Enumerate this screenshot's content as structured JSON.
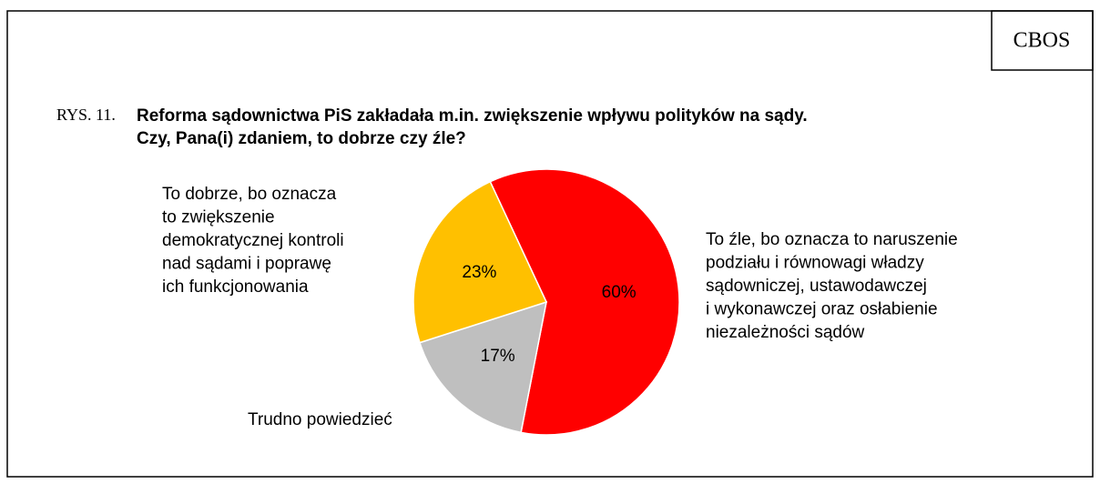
{
  "chart_data": {
    "type": "pie",
    "source": "CBOS",
    "figure_label": "RYS. 11.",
    "title": [
      "Reforma sądownictwa PiS zakładała m.in. zwiększenie wpływu polityków na sądy.",
      "Czy, Pana(i) zdaniem, to dobrze czy źle?"
    ],
    "categories": [
      [
        "To źle, bo oznacza to naruszenie",
        "podziału i równowagi władzy",
        "sądowniczej, ustawodawczej",
        "i wykonawczej oraz osłabienie",
        "niezależności sądów"
      ],
      [
        "Trudno powiedzieć"
      ],
      [
        "To dobrze, bo oznacza",
        "to zwiększenie",
        "demokratycznej kontroli",
        "nad sądami i poprawę",
        "ich funkcjonowania"
      ]
    ],
    "values": [
      60,
      17,
      23
    ],
    "value_labels": [
      "60%",
      "17%",
      "23%"
    ],
    "colors": [
      "#ff0000",
      "#bfbfbf",
      "#ffc000"
    ],
    "value_label_colors": [
      "#ffffff",
      "#404040",
      "#404040"
    ]
  }
}
